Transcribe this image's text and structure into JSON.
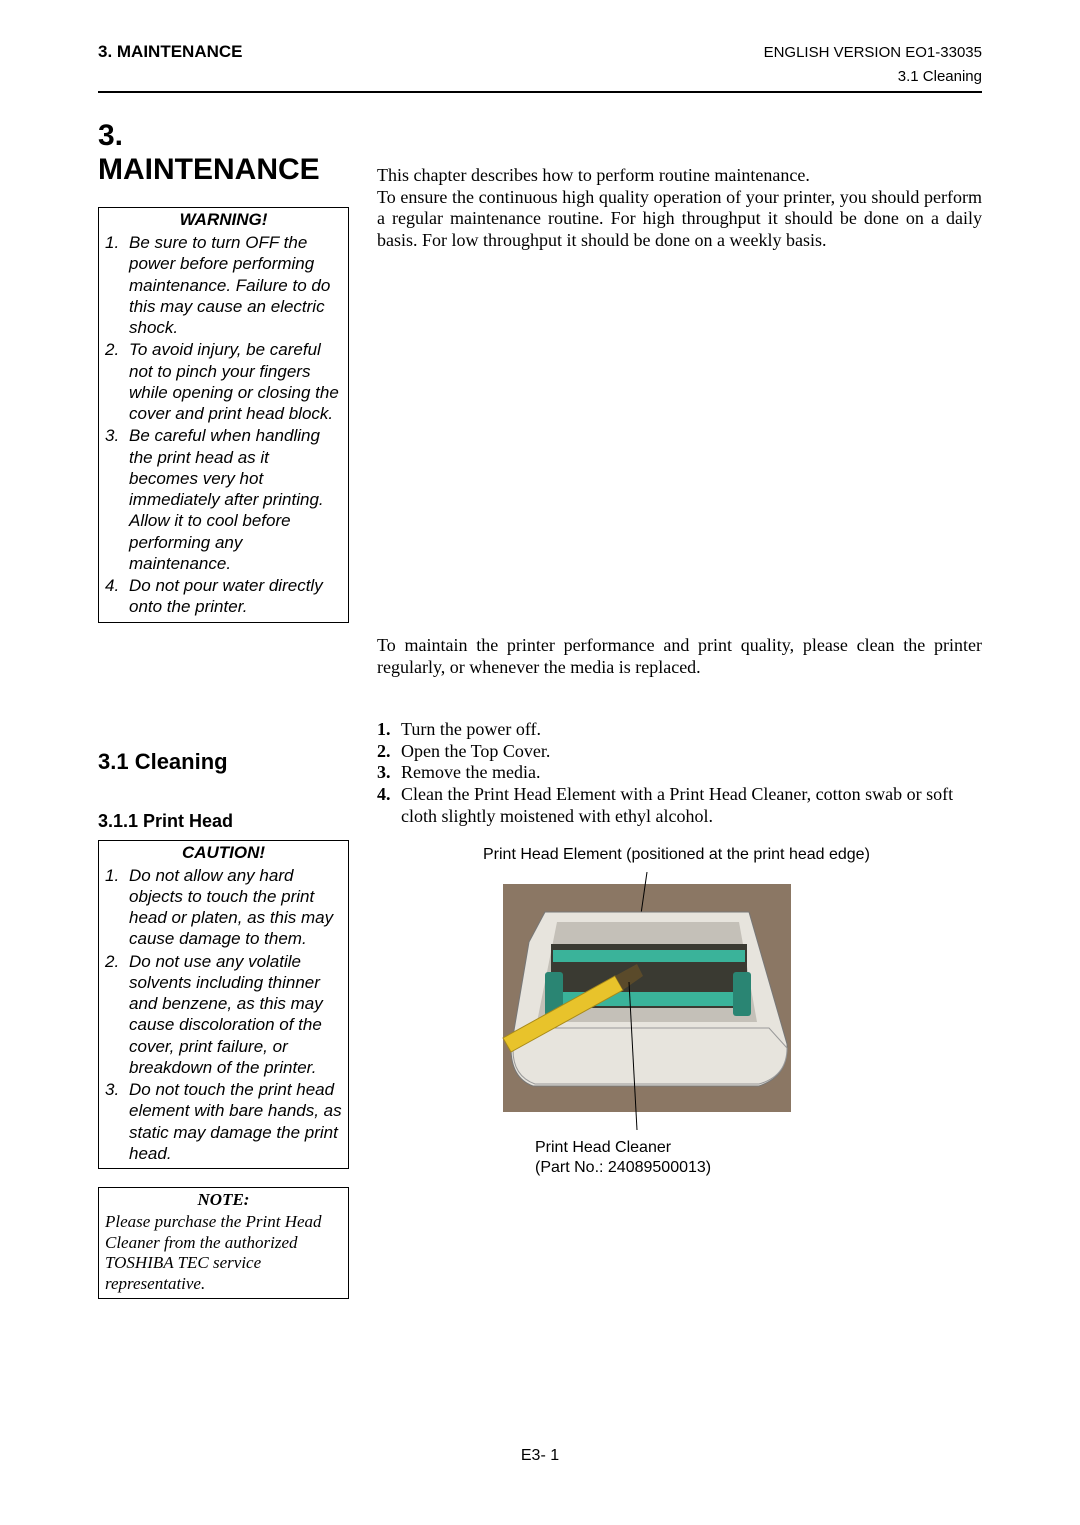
{
  "header": {
    "left": "3. MAINTENANCE",
    "right": "ENGLISH VERSION EO1-33035",
    "sub": "3.1 Cleaning"
  },
  "chapter": {
    "title": "3.   MAINTENANCE"
  },
  "warning": {
    "title": "WARNING!",
    "items": [
      "Be sure to turn OFF the power before performing maintenance.  Failure to do this may cause an electric shock.",
      "To avoid injury, be careful not to pinch your fingers while opening or closing the cover and print head block.",
      "Be careful when handling the print head as it becomes very hot immediately after printing.  Allow it to cool before performing any maintenance.",
      "Do not pour water directly onto the printer."
    ]
  },
  "intro": "This chapter describes how to perform routine maintenance.\nTo ensure the continuous high quality operation of your printer, you should perform a regular maintenance routine.  For high throughput it should be done on a daily basis.  For low throughput it should be done on a weekly basis.",
  "section31": {
    "title": "3.1  Cleaning",
    "text": "To maintain the printer performance and print quality, please clean the printer regularly, or whenever the media is replaced."
  },
  "subsection311": {
    "title": "3.1.1  Print Head"
  },
  "caution": {
    "title": "CAUTION!",
    "items": [
      "Do not allow any hard objects to touch the print head or platen, as this may cause damage to them.",
      "Do not use any volatile solvents including thinner and benzene, as this may cause discoloration of the cover, print failure, or breakdown of the printer.",
      "Do not touch the print head element with bare hands, as static may damage the print head."
    ]
  },
  "note": {
    "title": "NOTE:",
    "body": "Please purchase the Print Head Cleaner from the authorized TOSHIBA TEC service representative."
  },
  "steps": [
    "Turn the power off.",
    "Open the Top Cover.",
    "Remove the media.",
    "Clean the Print Head Element with a Print Head Cleaner, cotton swab or soft cloth slightly moistened with ethyl alcohol."
  ],
  "figure": {
    "caption_top": "Print Head Element (positioned at the print head edge)",
    "caption_bottom1": "Print Head Cleaner",
    "caption_bottom2": "(Part No.: 24089500013)",
    "colors": {
      "background": "#8b7764",
      "body": "#e7e4dd",
      "body_shadow": "#c4c0b8",
      "accent": "#3ab39a",
      "accent_dark": "#2a8573",
      "pen": "#e8c32b",
      "pen_tip": "#5a4a2a",
      "dark": "#3a3a32",
      "line": "#000000"
    }
  },
  "page_number": "E3- 1"
}
